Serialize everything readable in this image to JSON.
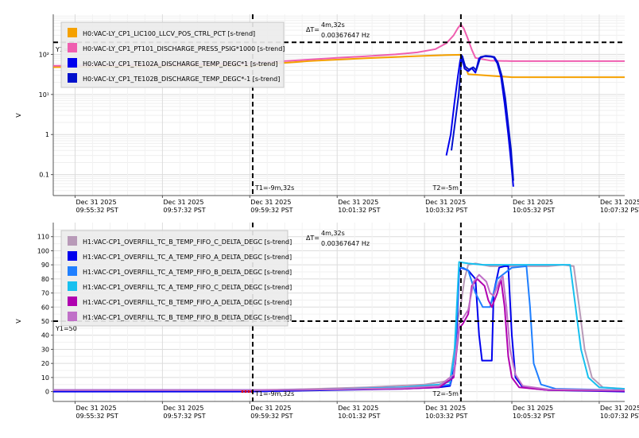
{
  "chart_data": [
    {
      "type": "line",
      "yscale": "log",
      "ylabel": "V",
      "ylim": [
        0.03,
        1000
      ],
      "yticks": [
        "0.1",
        "1",
        "10¹",
        "10²"
      ],
      "ytick_values": [
        0.1,
        1,
        10,
        100
      ],
      "xlim": [
        -60,
        1510
      ],
      "xticks": [
        {
          "t": 0,
          "date": "Dec 31 2025",
          "time": "09:55:32 PST"
        },
        {
          "t": 240,
          "date": "Dec 31 2025",
          "time": "09:57:32 PST"
        },
        {
          "t": 480,
          "date": "Dec 31 2025",
          "time": "09:59:32 PST"
        },
        {
          "t": 720,
          "date": "Dec 31 2025",
          "time": "10:01:32 PST"
        },
        {
          "t": 960,
          "date": "Dec 31 2025",
          "time": "10:03:32 PST"
        },
        {
          "t": 1200,
          "date": "Dec 31 2025",
          "time": "10:05:32 PST"
        },
        {
          "t": 1440,
          "date": "Dec 31 2025",
          "time": "10:07:32 PST"
        }
      ],
      "cursors": {
        "t1": {
          "t": 488,
          "label": "T1=-9m,32s"
        },
        "t2": {
          "t": 1060,
          "label": "T2=-5m"
        },
        "y1": {
          "value": 200,
          "label": "Y1="
        },
        "delta_label": "ΔT=",
        "delta": "4m,32s",
        "freq": "0.00367647 Hz"
      },
      "legend": {
        "placement": "top-left"
      },
      "series": [
        {
          "name": "H0:VAC-LY_CP1_LIC100_LLCV_POS_CTRL_PCT [s-trend]",
          "color": "#f5a100",
          "points": [
            [
              -60,
              48
            ],
            [
              200,
              50
            ],
            [
              440,
              52
            ],
            [
              480,
              50
            ],
            [
              560,
              60
            ],
            [
              640,
              68
            ],
            [
              720,
              74
            ],
            [
              800,
              80
            ],
            [
              880,
              86
            ],
            [
              960,
              92
            ],
            [
              1020,
              96
            ],
            [
              1060,
              98
            ],
            [
              1080,
              32
            ],
            [
              1200,
              27
            ],
            [
              1510,
              27
            ]
          ]
        },
        {
          "name": "H0:VAC-LY_CP1_PT101_DISCHARGE_PRESS_PSIG*1000 [s-trend]",
          "color": "#ef5fb0",
          "points": [
            [
              -60,
              52
            ],
            [
              100,
              54
            ],
            [
              200,
              55
            ],
            [
              300,
              56
            ],
            [
              400,
              58
            ],
            [
              480,
              60
            ],
            [
              560,
              67
            ],
            [
              640,
              74
            ],
            [
              720,
              82
            ],
            [
              800,
              90
            ],
            [
              880,
              100
            ],
            [
              940,
              112
            ],
            [
              990,
              135
            ],
            [
              1020,
              190
            ],
            [
              1040,
              300
            ],
            [
              1052,
              460
            ],
            [
              1060,
              560
            ],
            [
              1068,
              440
            ],
            [
              1078,
              260
            ],
            [
              1090,
              130
            ],
            [
              1100,
              82
            ],
            [
              1140,
              70
            ],
            [
              1200,
              68
            ],
            [
              1300,
              68
            ],
            [
              1400,
              68
            ],
            [
              1510,
              68
            ]
          ]
        },
        {
          "name": "H0:VAC-LY_CP1_TE102A_DISCHARGE_TEMP_DEGC*1 [s-trend]",
          "color": "#0000ee",
          "points": [
            [
              1020,
              0.3
            ],
            [
              1032,
              1
            ],
            [
              1042,
              6
            ],
            [
              1052,
              30
            ],
            [
              1058,
              70
            ],
            [
              1062,
              95
            ],
            [
              1070,
              44
            ],
            [
              1080,
              38
            ],
            [
              1090,
              45
            ],
            [
              1100,
              35
            ],
            [
              1110,
              80
            ],
            [
              1125,
              90
            ],
            [
              1140,
              88
            ],
            [
              1150,
              85
            ],
            [
              1160,
              60
            ],
            [
              1170,
              28
            ],
            [
              1180,
              6
            ],
            [
              1190,
              1
            ],
            [
              1196,
              0.3
            ],
            [
              1204,
              0.05
            ]
          ]
        },
        {
          "name": "H0:VAC-LY_CP1_TE102B_DISCHARGE_TEMP_DEGC*-1 [s-trend]",
          "color": "#0010cc",
          "points": [
            [
              1034,
              0.4
            ],
            [
              1044,
              2
            ],
            [
              1054,
              10
            ],
            [
              1060,
              50
            ],
            [
              1064,
              90
            ],
            [
              1072,
              50
            ],
            [
              1082,
              42
            ],
            [
              1094,
              48
            ],
            [
              1102,
              40
            ],
            [
              1114,
              86
            ],
            [
              1128,
              92
            ],
            [
              1142,
              90
            ],
            [
              1152,
              86
            ],
            [
              1162,
              62
            ],
            [
              1172,
              30
            ],
            [
              1182,
              8
            ],
            [
              1192,
              1.2
            ],
            [
              1198,
              0.4
            ],
            [
              1204,
              0.07
            ]
          ]
        }
      ]
    },
    {
      "type": "line",
      "ylabel": "V",
      "ylim": [
        -7,
        120
      ],
      "yticks": [
        "0",
        "10",
        "20",
        "30",
        "40",
        "50",
        "60",
        "70",
        "80",
        "90",
        "100",
        "110"
      ],
      "ytick_values": [
        0,
        10,
        20,
        30,
        40,
        50,
        60,
        70,
        80,
        90,
        100,
        110
      ],
      "xlim": [
        -60,
        1510
      ],
      "xticks": [
        {
          "t": 0,
          "date": "Dec 31 2025",
          "time": "09:55:32 PST"
        },
        {
          "t": 240,
          "date": "Dec 31 2025",
          "time": "09:57:32 PST"
        },
        {
          "t": 480,
          "date": "Dec 31 2025",
          "time": "09:59:32 PST"
        },
        {
          "t": 720,
          "date": "Dec 31 2025",
          "time": "10:01:32 PST"
        },
        {
          "t": 960,
          "date": "Dec 31 2025",
          "time": "10:03:32 PST"
        },
        {
          "t": 1200,
          "date": "Dec 31 2025",
          "time": "10:05:32 PST"
        },
        {
          "t": 1440,
          "date": "Dec 31 2025",
          "time": "10:07:32 PST"
        }
      ],
      "cursors": {
        "t1": {
          "t": 488,
          "label": "T1=-9m,32s"
        },
        "t2": {
          "t": 1060,
          "label": "T2=-5m"
        },
        "y1": {
          "value": 50,
          "label": "Y1=50"
        },
        "delta_label": "ΔT=",
        "delta": "4m,32s",
        "freq": "0.00367647 Hz"
      },
      "legend": {
        "placement": "top-left"
      },
      "series": [
        {
          "name": "H1:VAC-CP1_OVERFILL_TC_B_TEMP_FIFO_C_DELTA_DEGC [s-trend]",
          "color": "#b89ab8",
          "points": [
            [
              -60,
              1
            ],
            [
              480,
              1
            ],
            [
              600,
              1.5
            ],
            [
              800,
              3
            ],
            [
              960,
              5
            ],
            [
              1010,
              7
            ],
            [
              1030,
              8
            ],
            [
              1045,
              35
            ],
            [
              1052,
              52
            ],
            [
              1060,
              62
            ],
            [
              1070,
              80
            ],
            [
              1080,
              90
            ],
            [
              1100,
              91
            ],
            [
              1140,
              89
            ],
            [
              1200,
              89
            ],
            [
              1260,
              89
            ],
            [
              1300,
              89
            ],
            [
              1340,
              90
            ],
            [
              1370,
              89
            ],
            [
              1385,
              60
            ],
            [
              1400,
              30
            ],
            [
              1420,
              10
            ],
            [
              1450,
              3
            ],
            [
              1510,
              2
            ]
          ]
        },
        {
          "name": "H1:VAC-CP1_OVERFILL_TC_A_TEMP_FIFO_A_DELTA_DEGC [s-trend]",
          "color": "#0000ee",
          "points": [
            [
              -60,
              0
            ],
            [
              480,
              0
            ],
            [
              700,
              1
            ],
            [
              900,
              2
            ],
            [
              1000,
              3
            ],
            [
              1030,
              4
            ],
            [
              1045,
              20
            ],
            [
              1055,
              85
            ],
            [
              1060,
              88
            ],
            [
              1080,
              86
            ],
            [
              1100,
              80
            ],
            [
              1110,
              40
            ],
            [
              1118,
              22
            ],
            [
              1145,
              22
            ],
            [
              1150,
              70
            ],
            [
              1165,
              88
            ],
            [
              1180,
              89
            ],
            [
              1190,
              89
            ],
            [
              1200,
              40
            ],
            [
              1210,
              10
            ],
            [
              1230,
              3
            ],
            [
              1300,
              1
            ],
            [
              1510,
              0
            ]
          ]
        },
        {
          "name": "H1:VAC-CP1_OVERFILL_TC_A_TEMP_FIFO_B_DELTA_DEGC [s-trend]",
          "color": "#1f7fff",
          "points": [
            [
              -60,
              1
            ],
            [
              480,
              1
            ],
            [
              700,
              1.5
            ],
            [
              900,
              3
            ],
            [
              1000,
              4
            ],
            [
              1030,
              5
            ],
            [
              1045,
              30
            ],
            [
              1055,
              88
            ],
            [
              1065,
              88
            ],
            [
              1080,
              86
            ],
            [
              1100,
              70
            ],
            [
              1120,
              60
            ],
            [
              1140,
              60
            ],
            [
              1160,
              80
            ],
            [
              1200,
              88
            ],
            [
              1240,
              89
            ],
            [
              1250,
              60
            ],
            [
              1260,
              20
            ],
            [
              1280,
              5
            ],
            [
              1320,
              2
            ],
            [
              1510,
              1
            ]
          ]
        },
        {
          "name": "H1:VAC-CP1_OVERFILL_TC_A_TEMP_FIFO_C_DELTA_DEGC [s-trend]",
          "color": "#17c0ef",
          "points": [
            [
              -60,
              1
            ],
            [
              480,
              1
            ],
            [
              700,
              1.5
            ],
            [
              900,
              3
            ],
            [
              1000,
              5
            ],
            [
              1030,
              7
            ],
            [
              1042,
              27
            ],
            [
              1055,
              92
            ],
            [
              1080,
              91
            ],
            [
              1120,
              90
            ],
            [
              1200,
              90
            ],
            [
              1300,
              90
            ],
            [
              1360,
              90
            ],
            [
              1375,
              60
            ],
            [
              1390,
              30
            ],
            [
              1410,
              10
            ],
            [
              1440,
              3
            ],
            [
              1510,
              2
            ]
          ]
        },
        {
          "name": "H1:VAC-CP1_OVERFILL_TC_B_TEMP_FIFO_A_DELTA_DEGC [s-trend]",
          "color": "#b000b0",
          "points": [
            [
              -60,
              1
            ],
            [
              480,
              1
            ],
            [
              700,
              1.5
            ],
            [
              900,
              2
            ],
            [
              1000,
              3
            ],
            [
              1040,
              10
            ],
            [
              1055,
              45
            ],
            [
              1065,
              48
            ],
            [
              1080,
              55
            ],
            [
              1090,
              75
            ],
            [
              1105,
              80
            ],
            [
              1125,
              75
            ],
            [
              1135,
              65
            ],
            [
              1145,
              60
            ],
            [
              1160,
              70
            ],
            [
              1170,
              80
            ],
            [
              1180,
              60
            ],
            [
              1190,
              25
            ],
            [
              1200,
              10
            ],
            [
              1220,
              3
            ],
            [
              1300,
              1
            ],
            [
              1510,
              0.5
            ]
          ]
        },
        {
          "name": "H1:VAC-CP1_OVERFILL_TC_B_TEMP_FIFO_B_DELTA_DEGC [s-trend]",
          "color": "#c070c8",
          "points": [
            [
              -60,
              1
            ],
            [
              480,
              1
            ],
            [
              700,
              1.5
            ],
            [
              900,
              2.5
            ],
            [
              1000,
              4
            ],
            [
              1040,
              12
            ],
            [
              1055,
              48
            ],
            [
              1065,
              52
            ],
            [
              1080,
              58
            ],
            [
              1095,
              78
            ],
            [
              1110,
              83
            ],
            [
              1130,
              78
            ],
            [
              1140,
              70
            ],
            [
              1150,
              68
            ],
            [
              1165,
              78
            ],
            [
              1175,
              82
            ],
            [
              1185,
              60
            ],
            [
              1195,
              30
            ],
            [
              1210,
              12
            ],
            [
              1230,
              4
            ],
            [
              1300,
              1.5
            ],
            [
              1510,
              1
            ]
          ]
        }
      ]
    }
  ]
}
